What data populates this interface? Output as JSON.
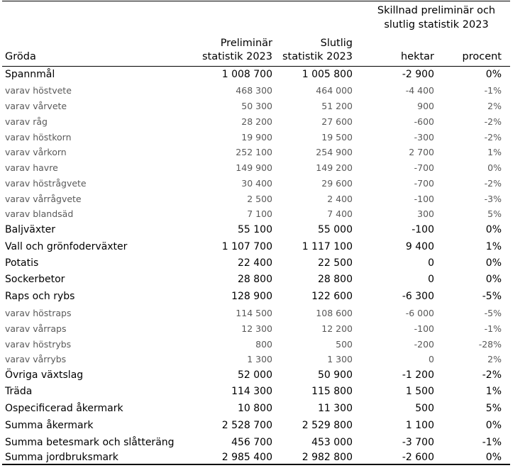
{
  "header": {
    "col_crop": "Gröda",
    "col_prelim": [
      "Preliminär",
      "statistik 2023"
    ],
    "col_final": [
      "Slutlig",
      "statistik 2023"
    ],
    "group": [
      "Skillnad preliminär och",
      "slutlig statistik 2023"
    ],
    "col_hektar": "hektar",
    "col_procent": "procent"
  },
  "chart_data": {
    "type": "table",
    "columns": [
      "Gröda",
      "Preliminär statistik 2023",
      "Slutlig statistik 2023",
      "hektar",
      "procent"
    ],
    "rows": [
      {
        "crop": "Spannmål",
        "prelim": "1 008 700",
        "final": "1 005 800",
        "diff_ha": "-2 900",
        "diff_pct": "0%",
        "level": "main"
      },
      {
        "crop": "varav höstvete",
        "prelim": "468 300",
        "final": "464 000",
        "diff_ha": "-4 400",
        "diff_pct": "-1%",
        "level": "sub"
      },
      {
        "crop": "varav vårvete",
        "prelim": "50 300",
        "final": "51 200",
        "diff_ha": "900",
        "diff_pct": "2%",
        "level": "sub"
      },
      {
        "crop": "varav råg",
        "prelim": "28 200",
        "final": "27 600",
        "diff_ha": "-600",
        "diff_pct": "-2%",
        "level": "sub"
      },
      {
        "crop": "varav höstkorn",
        "prelim": "19 900",
        "final": "19 500",
        "diff_ha": "-300",
        "diff_pct": "-2%",
        "level": "sub"
      },
      {
        "crop": "varav vårkorn",
        "prelim": "252 100",
        "final": "254 900",
        "diff_ha": "2 700",
        "diff_pct": "1%",
        "level": "sub"
      },
      {
        "crop": "varav havre",
        "prelim": "149 900",
        "final": "149 200",
        "diff_ha": "-700",
        "diff_pct": "0%",
        "level": "sub"
      },
      {
        "crop": "varav höstrågvete",
        "prelim": "30 400",
        "final": "29 600",
        "diff_ha": "-700",
        "diff_pct": "-2%",
        "level": "sub"
      },
      {
        "crop": "varav vårrågvete",
        "prelim": "2 500",
        "final": "2 400",
        "diff_ha": "-100",
        "diff_pct": "-3%",
        "level": "sub"
      },
      {
        "crop": "varav blandsäd",
        "prelim": "7 100",
        "final": "7 400",
        "diff_ha": "300",
        "diff_pct": "5%",
        "level": "sub"
      },
      {
        "crop": "Baljväxter",
        "prelim": "55 100",
        "final": "55 000",
        "diff_ha": "-100",
        "diff_pct": "0%",
        "level": "main"
      },
      {
        "crop": "Vall och grönfoderväxter",
        "prelim": "1 107 700",
        "final": "1 117 100",
        "diff_ha": "9 400",
        "diff_pct": "1%",
        "level": "main"
      },
      {
        "crop": "Potatis",
        "prelim": "22 400",
        "final": "22 500",
        "diff_ha": "0",
        "diff_pct": "0%",
        "level": "main"
      },
      {
        "crop": "Sockerbetor",
        "prelim": "28 800",
        "final": "28 800",
        "diff_ha": "0",
        "diff_pct": "0%",
        "level": "main"
      },
      {
        "crop": "Raps och rybs",
        "prelim": "128 900",
        "final": "122 600",
        "diff_ha": "-6 300",
        "diff_pct": "-5%",
        "level": "main"
      },
      {
        "crop": "varav höstraps",
        "prelim": "114 500",
        "final": "108 600",
        "diff_ha": "-6 000",
        "diff_pct": "-5%",
        "level": "sub"
      },
      {
        "crop": "varav vårraps",
        "prelim": "12 300",
        "final": "12 200",
        "diff_ha": "-100",
        "diff_pct": "-1%",
        "level": "sub"
      },
      {
        "crop": "varav höstrybs",
        "prelim": "800",
        "final": "500",
        "diff_ha": "-200",
        "diff_pct": "-28%",
        "level": "sub"
      },
      {
        "crop": "varav vårrybs",
        "prelim": "1 300",
        "final": "1 300",
        "diff_ha": "0",
        "diff_pct": "2%",
        "level": "sub"
      },
      {
        "crop": "Övriga växtslag",
        "prelim": "52 000",
        "final": "50 900",
        "diff_ha": "-1 200",
        "diff_pct": "-2%",
        "level": "main"
      },
      {
        "crop": "Träda",
        "prelim": "114 300",
        "final": "115 800",
        "diff_ha": "1 500",
        "diff_pct": "1%",
        "level": "main"
      },
      {
        "crop": "Ospecificerad åkermark",
        "prelim": "10 800",
        "final": "11 300",
        "diff_ha": "500",
        "diff_pct": "5%",
        "level": "main"
      },
      {
        "crop": "Summa åkermark",
        "prelim": "2 528 700",
        "final": "2 529 800",
        "diff_ha": "1 100",
        "diff_pct": "0%",
        "level": "main"
      },
      {
        "crop": "Summa betesmark och slåtteräng",
        "prelim": "456 700",
        "final": "453 000",
        "diff_ha": "-3 700",
        "diff_pct": "-1%",
        "level": "main"
      },
      {
        "crop": "Summa jordbruksmark",
        "prelim": "2 985 400",
        "final": "2 982 800",
        "diff_ha": "-2 600",
        "diff_pct": "0%",
        "level": "main"
      }
    ]
  }
}
